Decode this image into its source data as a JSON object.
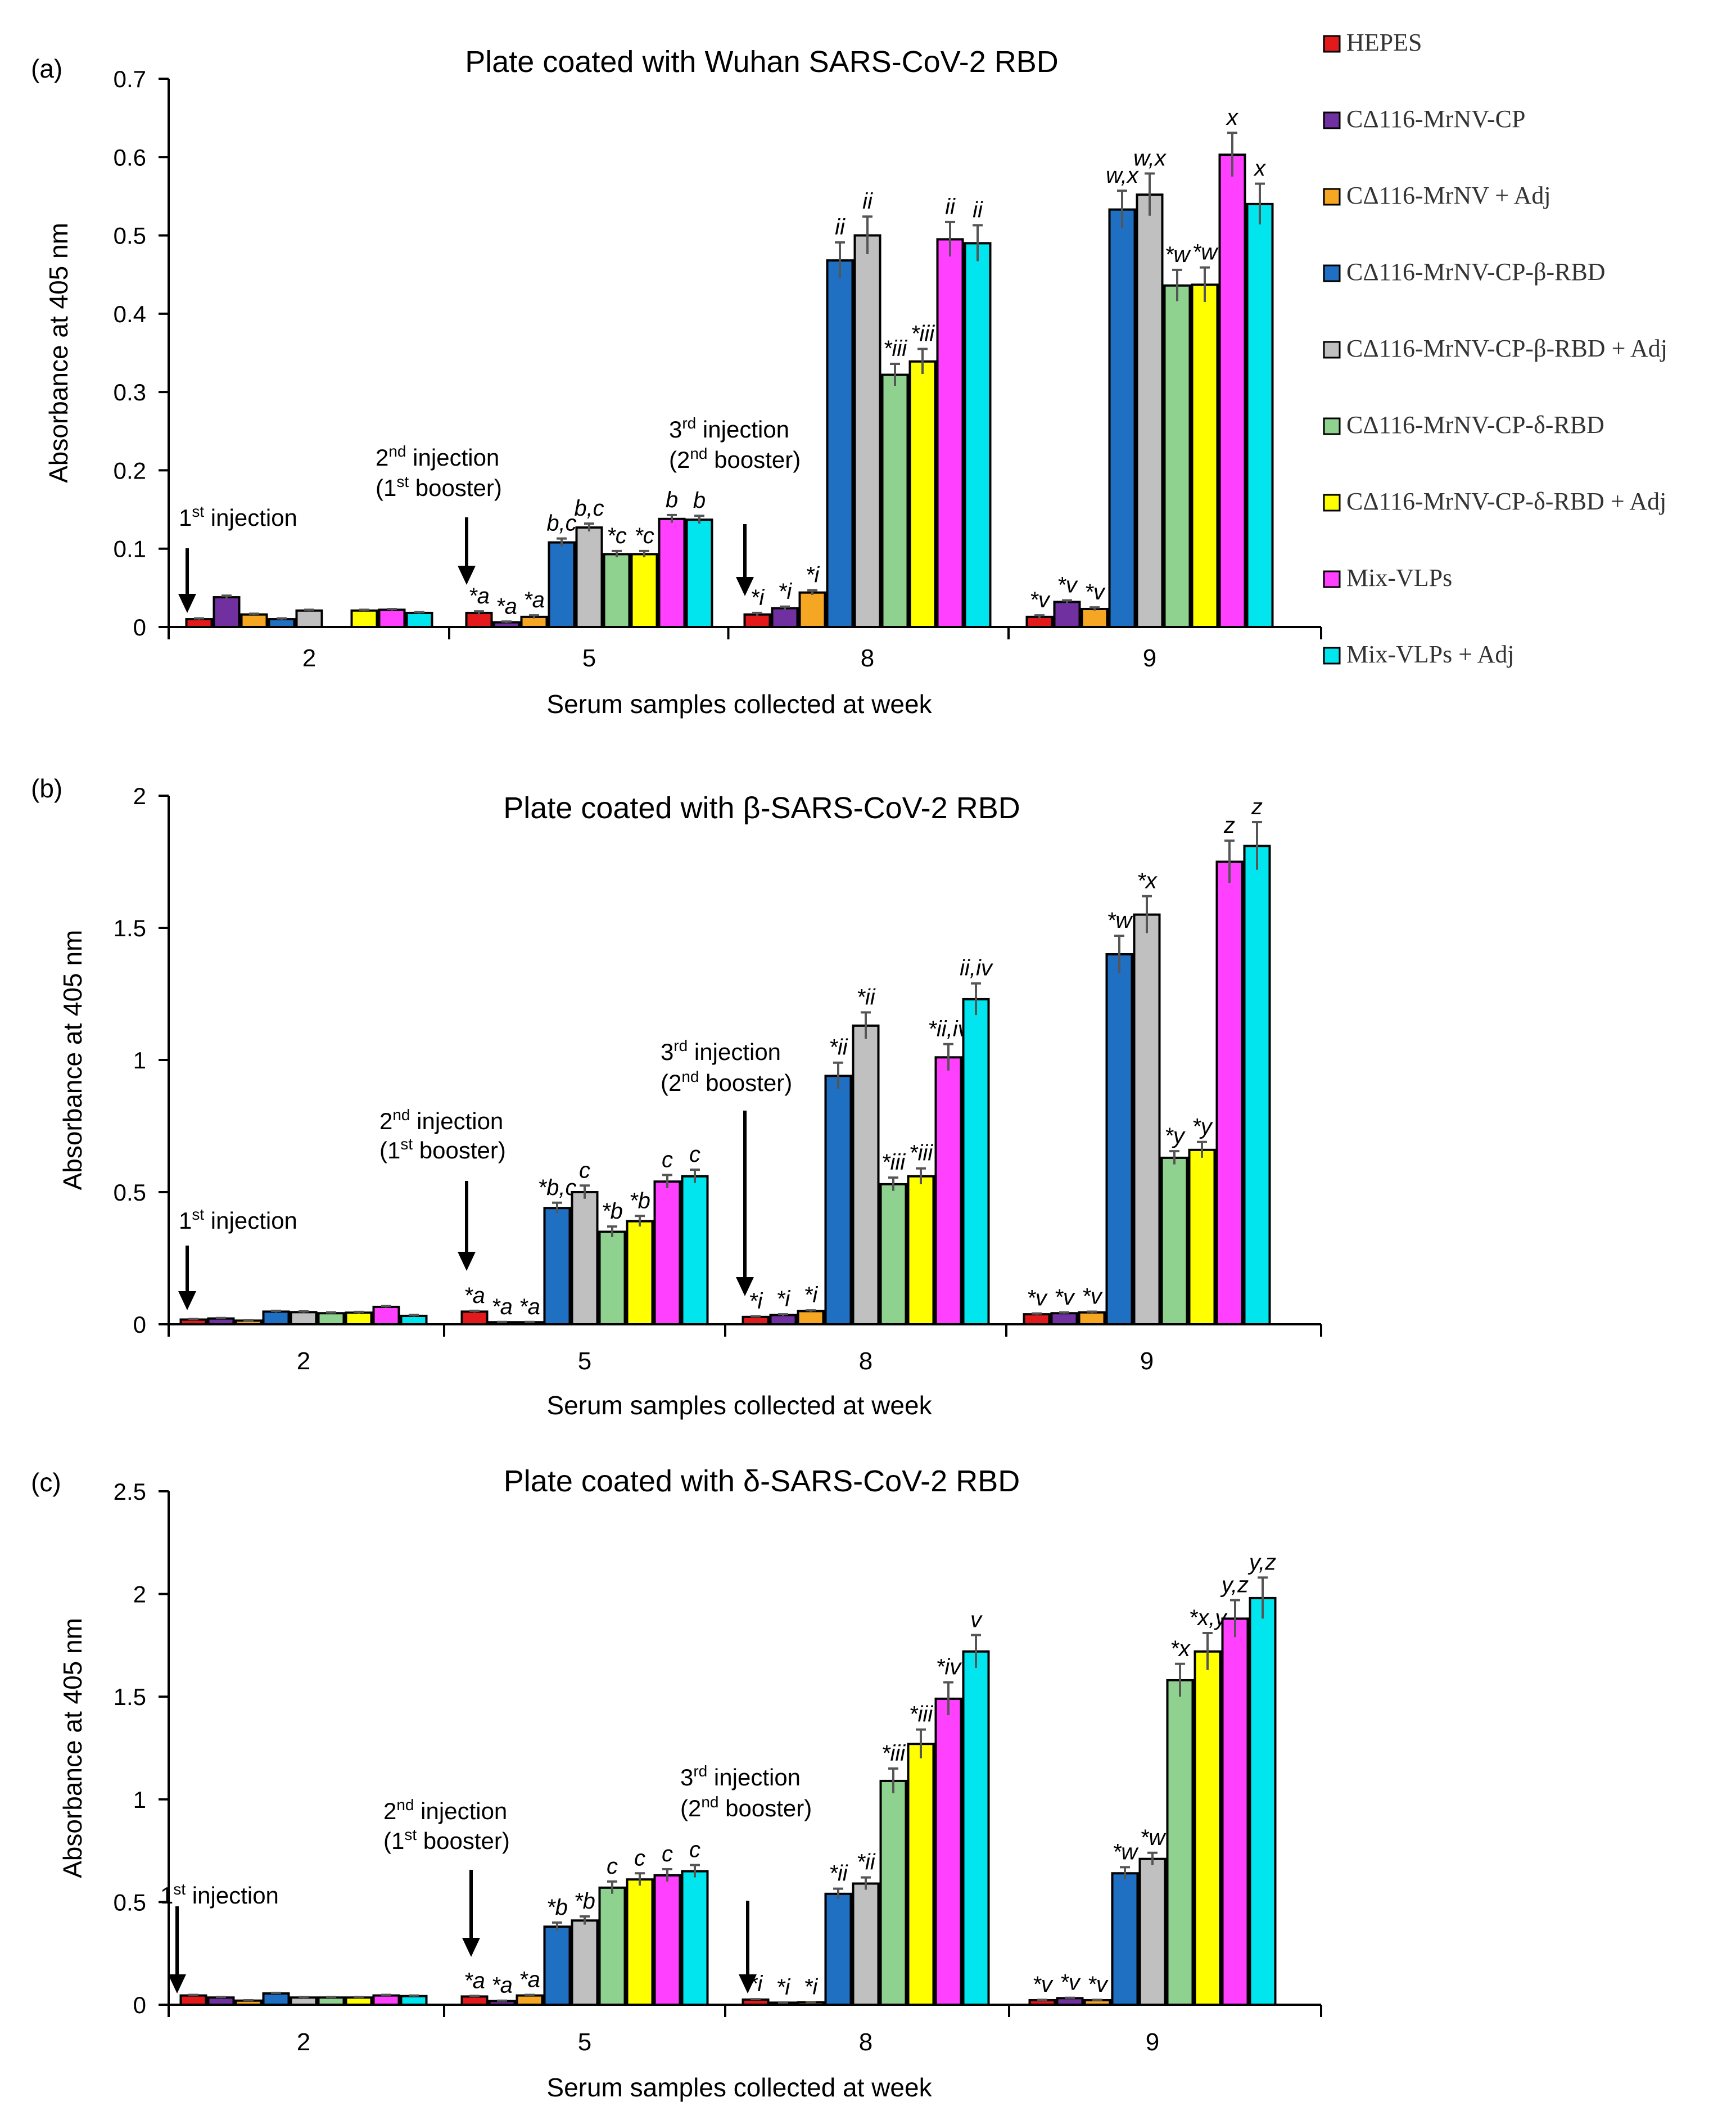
{
  "legend": {
    "series": [
      {
        "name": "HEPES",
        "color": "#e31a1c"
      },
      {
        "name": "CΔ116-MrNV-CP",
        "color": "#7030a0"
      },
      {
        "name": "CΔ116-MrNV + Adj",
        "color": "#f5a623"
      },
      {
        "name": "CΔ116-MrNV-CP-β-RBD",
        "color": "#1f6fc2"
      },
      {
        "name": "CΔ116-MrNV-CP-β-RBD + Adj",
        "color": "#c0c0c0"
      },
      {
        "name": "CΔ116-MrNV-CP-δ-RBD",
        "color": "#8fd18f"
      },
      {
        "name": "CΔ116-MrNV-CP-δ-RBD + Adj",
        "color": "#ffff00"
      },
      {
        "name": "Mix-VLPs",
        "color": "#ff40ff"
      },
      {
        "name": "Mix-VLPs + Adj",
        "color": "#00e5ee"
      }
    ]
  },
  "chart_data": [
    {
      "type": "bar",
      "panel": "(a)",
      "title": "Plate coated with Wuhan SARS-CoV-2 RBD",
      "xlabel": "Serum samples collected at week",
      "ylabel": "Absorbance at 405 nm",
      "categories": [
        "2",
        "5",
        "8",
        "9"
      ],
      "ylim": [
        0,
        0.7
      ],
      "yticks": [
        "0",
        "0.1",
        "0.2",
        "0.3",
        "0.4",
        "0.5",
        "0.6",
        "0.7"
      ],
      "series": [
        {
          "name": "HEPES",
          "values": [
            0.01,
            0.018,
            0.016,
            0.013
          ],
          "errors": [
            0.001,
            0.002,
            0.002,
            0.002
          ],
          "labels": [
            "",
            "*a",
            "*i",
            "*v"
          ]
        },
        {
          "name": "CΔ116-MrNV-CP",
          "values": [
            0.038,
            0.006,
            0.024,
            0.032
          ],
          "errors": [
            0.002,
            0.001,
            0.002,
            0.002
          ],
          "labels": [
            "",
            "*a",
            "*i",
            "*v"
          ]
        },
        {
          "name": "CΔ116-MrNV + Adj",
          "values": [
            0.016,
            0.013,
            0.044,
            0.023
          ],
          "errors": [
            0.001,
            0.002,
            0.003,
            0.002
          ],
          "labels": [
            "",
            "*a",
            "*i",
            "*v"
          ]
        },
        {
          "name": "CΔ116-MrNV-CP-β-RBD",
          "values": [
            0.01,
            0.108,
            0.468,
            0.533
          ],
          "errors": [
            0.001,
            0.005,
            0.023,
            0.024
          ],
          "labels": [
            "",
            "b,c",
            "ii",
            "w,x"
          ]
        },
        {
          "name": "CΔ116-MrNV-CP-β-RBD + Adj",
          "values": [
            0.021,
            0.127,
            0.5,
            0.552
          ],
          "errors": [
            0.001,
            0.005,
            0.024,
            0.027
          ],
          "labels": [
            "",
            "b,c",
            "ii",
            "w,x"
          ]
        },
        {
          "name": "CΔ116-MrNV-CP-δ-RBD",
          "values": [
            0.0,
            0.093,
            0.322,
            0.436
          ],
          "errors": [
            0.0,
            0.004,
            0.014,
            0.02
          ],
          "labels": [
            "",
            "*c",
            "*iii",
            "*w"
          ]
        },
        {
          "name": "CΔ116-MrNV-CP-δ-RBD + Adj",
          "values": [
            0.021,
            0.093,
            0.339,
            0.437
          ],
          "errors": [
            0.001,
            0.004,
            0.016,
            0.022
          ],
          "labels": [
            "",
            "*c",
            "*iii",
            "*w"
          ]
        },
        {
          "name": "Mix-VLPs",
          "values": [
            0.022,
            0.138,
            0.495,
            0.603
          ],
          "errors": [
            0.001,
            0.005,
            0.022,
            0.028
          ],
          "labels": [
            "",
            "b",
            "ii",
            "x"
          ]
        },
        {
          "name": "Mix-VLPs + Adj",
          "values": [
            0.018,
            0.137,
            0.49,
            0.54
          ],
          "errors": [
            0.001,
            0.005,
            0.023,
            0.026
          ],
          "labels": [
            "",
            "b",
            "ii",
            "x"
          ]
        }
      ],
      "annotations": [
        {
          "line1": "1",
          "sup": "st",
          "line1_rest": " injection",
          "line2": "",
          "line2_sup": "",
          "line2_rest": ""
        },
        {
          "line1": "2",
          "sup": "nd",
          "line1_rest": "  injection",
          "line2": "(1",
          "line2_sup": "st",
          "line2_rest": " booster)"
        },
        {
          "line1": "3",
          "sup": "rd",
          "line1_rest": " injection",
          "line2": "(2",
          "line2_sup": "nd",
          "line2_rest": " booster)"
        }
      ]
    },
    {
      "type": "bar",
      "panel": "(b)",
      "title": "Plate coated with β-SARS-CoV-2 RBD",
      "xlabel": "Serum samples collected at week",
      "ylabel": "Absorbance at 405 nm",
      "categories": [
        "2",
        "5",
        "8",
        "9"
      ],
      "ylim": [
        0,
        2
      ],
      "yticks": [
        "0",
        "0.5",
        "1",
        "1.5",
        "2"
      ],
      "series": [
        {
          "name": "HEPES",
          "values": [
            0.018,
            0.048,
            0.028,
            0.038
          ],
          "errors": [
            0.002,
            0.003,
            0.002,
            0.003
          ],
          "labels": [
            "",
            "*a",
            "*i",
            "*v"
          ]
        },
        {
          "name": "CΔ116-MrNV-CP",
          "values": [
            0.022,
            0.008,
            0.035,
            0.042
          ],
          "errors": [
            0.002,
            0.001,
            0.003,
            0.003
          ],
          "labels": [
            "",
            "*a",
            "*i",
            "*v"
          ]
        },
        {
          "name": "CΔ116-MrNV + Adj",
          "values": [
            0.014,
            0.008,
            0.05,
            0.045
          ],
          "errors": [
            0.001,
            0.001,
            0.003,
            0.003
          ],
          "labels": [
            "",
            "*a",
            "*i",
            "*v"
          ]
        },
        {
          "name": "CΔ116-MrNV-CP-β-RBD",
          "values": [
            0.048,
            0.44,
            0.94,
            1.4
          ],
          "errors": [
            0.003,
            0.02,
            0.05,
            0.07
          ],
          "labels": [
            "",
            "*b,c",
            "*ii",
            "*w"
          ]
        },
        {
          "name": "CΔ116-MrNV-CP-β-RBD + Adj",
          "values": [
            0.046,
            0.5,
            1.13,
            1.55
          ],
          "errors": [
            0.003,
            0.025,
            0.05,
            0.07
          ],
          "labels": [
            "",
            "c",
            "*ii",
            "*x"
          ]
        },
        {
          "name": "CΔ116-MrNV-CP-δ-RBD",
          "values": [
            0.042,
            0.35,
            0.53,
            0.63
          ],
          "errors": [
            0.003,
            0.02,
            0.025,
            0.025
          ],
          "labels": [
            "",
            "*b",
            "*iii",
            "*y"
          ]
        },
        {
          "name": "CΔ116-MrNV-CP-δ-RBD + Adj",
          "values": [
            0.044,
            0.39,
            0.56,
            0.66
          ],
          "errors": [
            0.003,
            0.02,
            0.03,
            0.03
          ],
          "labels": [
            "",
            "*b",
            "*iii",
            "*y"
          ]
        },
        {
          "name": "Mix-VLPs",
          "values": [
            0.066,
            0.54,
            1.01,
            1.75
          ],
          "errors": [
            0.003,
            0.025,
            0.05,
            0.08
          ],
          "labels": [
            "",
            "c",
            "*ii,iv",
            "z"
          ]
        },
        {
          "name": "Mix-VLPs + Adj",
          "values": [
            0.032,
            0.56,
            1.23,
            1.81
          ],
          "errors": [
            0.003,
            0.025,
            0.06,
            0.09
          ],
          "labels": [
            "",
            "c",
            "ii,iv",
            "z"
          ]
        }
      ],
      "annotations": [
        {
          "line1": "1",
          "sup": "st",
          "line1_rest": " injection",
          "line2": "",
          "line2_sup": "",
          "line2_rest": ""
        },
        {
          "line1": "2",
          "sup": "nd",
          "line1_rest": "  injection",
          "line2": "(1",
          "line2_sup": "st",
          "line2_rest": " booster)"
        },
        {
          "line1": "3",
          "sup": "rd",
          "line1_rest": " injection",
          "line2": "(2",
          "line2_sup": "nd",
          "line2_rest": " booster)"
        }
      ]
    },
    {
      "type": "bar",
      "panel": "(c)",
      "title": "Plate coated with δ-SARS-CoV-2 RBD",
      "xlabel": "Serum samples collected at week",
      "ylabel": "Absorbance at 405 nm",
      "categories": [
        "2",
        "5",
        "8",
        "9"
      ],
      "ylim": [
        0,
        2.5
      ],
      "yticks": [
        "0",
        "0.5",
        "1",
        "1.5",
        "2",
        "2.5"
      ],
      "series": [
        {
          "name": "HEPES",
          "values": [
            0.045,
            0.04,
            0.025,
            0.022
          ],
          "errors": [
            0.003,
            0.003,
            0.002,
            0.002
          ],
          "labels": [
            "",
            "*a",
            "*i",
            "*v"
          ]
        },
        {
          "name": "CΔ116-MrNV-CP",
          "values": [
            0.035,
            0.018,
            0.01,
            0.032
          ],
          "errors": [
            0.003,
            0.002,
            0.001,
            0.002
          ],
          "labels": [
            "",
            "*a",
            "*i",
            "*v"
          ]
        },
        {
          "name": "CΔ116-MrNV + Adj",
          "values": [
            0.02,
            0.045,
            0.012,
            0.022
          ],
          "errors": [
            0.002,
            0.003,
            0.001,
            0.002
          ],
          "labels": [
            "",
            "*a",
            "*i",
            "*v"
          ]
        },
        {
          "name": "CΔ116-MrNV-CP-β-RBD",
          "values": [
            0.055,
            0.38,
            0.54,
            0.64
          ],
          "errors": [
            0.003,
            0.02,
            0.025,
            0.03
          ],
          "labels": [
            "",
            "*b",
            "*ii",
            "*w"
          ]
        },
        {
          "name": "CΔ116-MrNV-CP-β-RBD + Adj",
          "values": [
            0.035,
            0.41,
            0.59,
            0.71
          ],
          "errors": [
            0.003,
            0.02,
            0.03,
            0.03
          ],
          "labels": [
            "",
            "*b",
            "*ii",
            "*w"
          ]
        },
        {
          "name": "CΔ116-MrNV-CP-δ-RBD",
          "values": [
            0.035,
            0.57,
            1.09,
            1.58
          ],
          "errors": [
            0.003,
            0.03,
            0.06,
            0.08
          ],
          "labels": [
            "",
            "c",
            "*iii",
            "*x"
          ]
        },
        {
          "name": "CΔ116-MrNV-CP-δ-RBD + Adj",
          "values": [
            0.035,
            0.61,
            1.27,
            1.72
          ],
          "errors": [
            0.003,
            0.03,
            0.07,
            0.09
          ],
          "labels": [
            "",
            "c",
            "*iii",
            "*x,y"
          ]
        },
        {
          "name": "Mix-VLPs",
          "values": [
            0.045,
            0.63,
            1.49,
            1.88
          ],
          "errors": [
            0.003,
            0.03,
            0.08,
            0.09
          ],
          "labels": [
            "",
            "c",
            "*iv",
            "y,z"
          ]
        },
        {
          "name": "Mix-VLPs + Adj",
          "values": [
            0.042,
            0.65,
            1.72,
            1.98
          ],
          "errors": [
            0.003,
            0.03,
            0.08,
            0.1
          ],
          "labels": [
            "",
            "c",
            "v",
            "y,z"
          ]
        }
      ],
      "annotations": [
        {
          "line1": "1",
          "sup": "st",
          "line1_rest": " injection",
          "line2": "",
          "line2_sup": "",
          "line2_rest": ""
        },
        {
          "line1": "2",
          "sup": "nd",
          "line1_rest": "  injection",
          "line2": "(1",
          "line2_sup": "st",
          "line2_rest": " booster)"
        },
        {
          "line1": "3",
          "sup": "rd",
          "line1_rest": " injection",
          "line2": "(2",
          "line2_sup": "nd",
          "line2_rest": " booster)"
        }
      ]
    }
  ]
}
